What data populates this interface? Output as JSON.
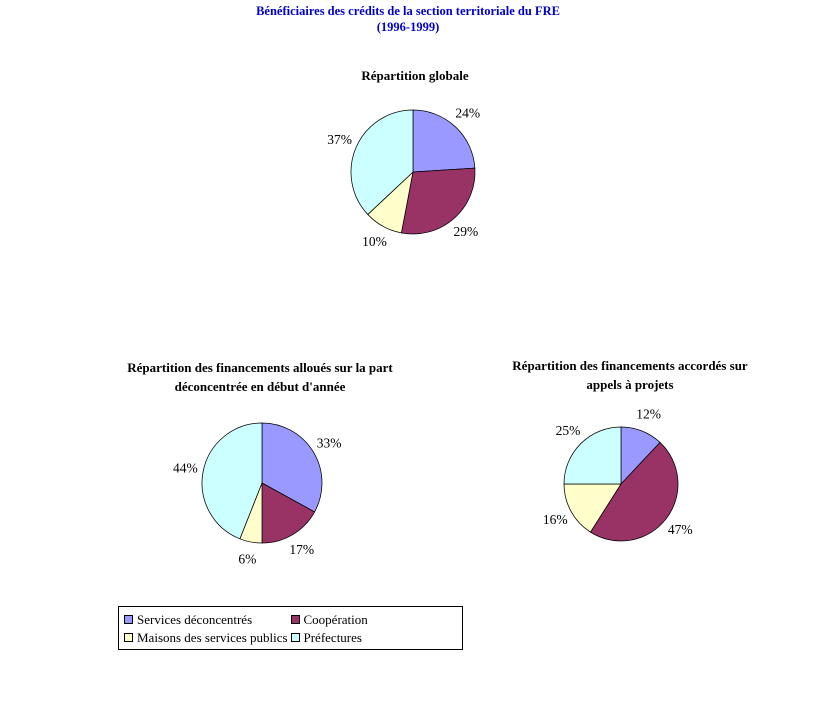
{
  "page_title": {
    "line1": "Bénéficiaires des crédits de la section territoriale du FRE",
    "line2": "(1996-1999)",
    "color": "#0000CC"
  },
  "legend": {
    "position": "bottom-left",
    "items": [
      {
        "label": "Services déconcentrés",
        "color": "#9999FF"
      },
      {
        "label": "Coopération",
        "color": "#993366"
      },
      {
        "label": "Maisons des services publics",
        "color": "#FFFFCC"
      },
      {
        "label": "Préfectures",
        "color": "#CCFFFF"
      }
    ]
  },
  "chart_data": [
    {
      "type": "pie",
      "title": "Répartition globale",
      "title_lines": [
        "Répartition globale"
      ],
      "categories": [
        "Services déconcentrés",
        "Coopération",
        "Maisons des services publics",
        "Préfectures"
      ],
      "values": [
        24,
        29,
        10,
        37
      ],
      "unit": "%",
      "colors": [
        "#9999FF",
        "#993366",
        "#FFFFCC",
        "#CCFFFF"
      ],
      "start_angle_deg": 0,
      "direction": "clockwise"
    },
    {
      "type": "pie",
      "title": "Répartition des financements alloués sur la part déconcentrée en début d'année",
      "title_lines": [
        "Répartition des financements alloués sur la part",
        "déconcentrée en début d'année"
      ],
      "categories": [
        "Services déconcentrés",
        "Coopération",
        "Maisons des services publics",
        "Préfectures"
      ],
      "values": [
        33,
        17,
        6,
        44
      ],
      "unit": "%",
      "colors": [
        "#9999FF",
        "#993366",
        "#FFFFCC",
        "#CCFFFF"
      ],
      "start_angle_deg": 0,
      "direction": "clockwise"
    },
    {
      "type": "pie",
      "title": "Répartition des financements accordés sur appels à projets",
      "title_lines": [
        "Répartition des financements accordés sur",
        "appels à projets"
      ],
      "categories": [
        "Services déconcentrés",
        "Coopération",
        "Maisons des services publics",
        "Préfectures"
      ],
      "values": [
        12,
        47,
        16,
        25
      ],
      "unit": "%",
      "colors": [
        "#9999FF",
        "#993366",
        "#FFFFCC",
        "#CCFFFF"
      ],
      "start_angle_deg": 0,
      "direction": "clockwise"
    }
  ]
}
